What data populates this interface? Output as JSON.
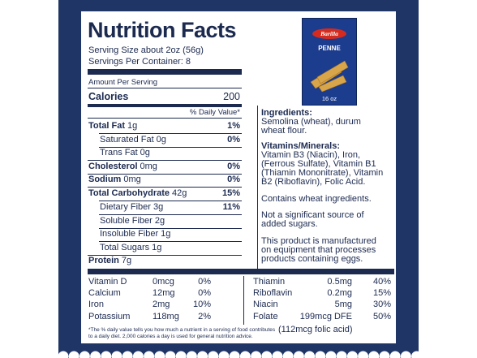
{
  "title": "Nutrition Facts",
  "serving_size": "Serving Size about 2oz (56g)",
  "servings": "Servings Per Container: 8",
  "amount_per_serving": "Amount Per Serving",
  "calories": {
    "label": "Calories",
    "value": "200"
  },
  "daily_value_header": "% Daily Value*",
  "rows": [
    {
      "label": "Total Fat",
      "amount": "1g",
      "dv": "1%",
      "bold": true
    },
    {
      "label": "Saturated Fat",
      "amount": "0g",
      "dv": "0%",
      "bold": false
    },
    {
      "label": "Trans Fat",
      "amount": "0g",
      "dv": "",
      "bold": false
    },
    {
      "label": "Cholesterol",
      "amount": "0mg",
      "dv": "0%",
      "bold": true
    },
    {
      "label": "Sodium",
      "amount": "0mg",
      "dv": "0%",
      "bold": true
    },
    {
      "label": "Total Carbohydrate",
      "amount": "42g",
      "dv": "15%",
      "bold": true
    },
    {
      "label": "Dietary Fiber",
      "amount": "3g",
      "dv": "11%",
      "bold": false
    },
    {
      "label": "Soluble Fiber",
      "amount": "2g",
      "dv": "",
      "bold": false
    },
    {
      "label": "Insoluble Fiber",
      "amount": "1g",
      "dv": "",
      "bold": false
    },
    {
      "label": "Total Sugars",
      "amount": "1g",
      "dv": "",
      "bold": false
    },
    {
      "label": "Protein",
      "amount": "7g",
      "dv": "",
      "bold": true
    }
  ],
  "ingredients_title": "Ingredients:",
  "ingredients_lines": [
    "Semolina (wheat), durum",
    "wheat flour."
  ],
  "vitamins_title": "Vitamins/Minerals:",
  "vitamins_lines": [
    "Vitamin B3 (Niacin), Iron,",
    "(Ferrous Sulfate), Vitamin B1",
    "(Thiamin Mononitrate), Vitamin",
    "B2 (Riboflavin), Folic Acid."
  ],
  "allergen": "Contains wheat ingredients.",
  "sugar_lines": [
    "Not a significant source of",
    "added sugars."
  ],
  "facility_lines": [
    "This product is manufactured",
    "on equipment that processes",
    "products containing eggs."
  ],
  "micro_left": [
    {
      "name": "Vitamin D",
      "amount": "0mcg",
      "dv": "0%"
    },
    {
      "name": "Calcium",
      "amount": "12mg",
      "dv": "0%"
    },
    {
      "name": "Iron",
      "amount": "2mg",
      "dv": "10%"
    },
    {
      "name": "Potassium",
      "amount": "118mg",
      "dv": "2%"
    }
  ],
  "micro_right": [
    {
      "name": "Thiamin",
      "amount": "0.5mg",
      "dv": "40%"
    },
    {
      "name": "Riboflavin",
      "amount": "0.2mg",
      "dv": "15%"
    },
    {
      "name": "Niacin",
      "amount": "5mg",
      "dv": "30%"
    },
    {
      "name": "Folate",
      "amount": "199mcg DFE",
      "dv": "50%"
    }
  ],
  "folic_note": "(112mcg folic acid)",
  "footnote_lines": [
    "*The % daily value tells you how much a nutrient in a serving of food contributes",
    "to a daily diet. 2,000 calories a day is used for general nutrition advice."
  ],
  "box": {
    "brand": "Barilla",
    "product": "PENNE",
    "size": "16 oz"
  },
  "colors": {
    "navy": "#1f3566",
    "text": "#1c2a50",
    "box_blue": "#1c3c8e",
    "logo_red": "#d52b1e"
  }
}
